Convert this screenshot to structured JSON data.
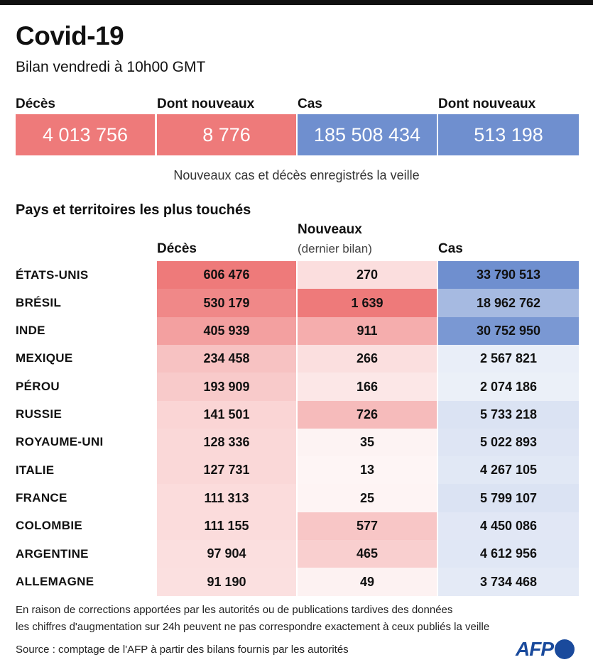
{
  "header": {
    "title": "Covid-19",
    "subtitle": "Bilan vendredi à 10h00 GMT"
  },
  "summary": [
    {
      "label": "Décès",
      "value": "4 013 756",
      "color": "#ee7a7a"
    },
    {
      "label": "Dont nouveaux",
      "value": "8 776",
      "color": "#ee7a7a"
    },
    {
      "label": "Cas",
      "value": "185 508 434",
      "color": "#6f8fcf"
    },
    {
      "label": "Dont nouveaux",
      "value": "513 198",
      "color": "#6f8fcf"
    }
  ],
  "note": "Nouveaux cas et décès enregistrés la veille",
  "section_title": "Pays et territoires les plus touchés",
  "columns": {
    "deaths": "Décès",
    "new": "Nouveaux",
    "new_sub": "(dernier bilan)",
    "cases": "Cas"
  },
  "chart_data": {
    "type": "table",
    "title": "Pays et territoires les plus touchés",
    "columns": [
      "Décès",
      "Nouveaux (dernier bilan)",
      "Cas"
    ],
    "rows": [
      {
        "country": "ÉTATS-UNIS",
        "deaths": 606476,
        "new": 270,
        "cases": 33790513,
        "deaths_label": "606 476",
        "new_label": "270",
        "cases_label": "33 790 513"
      },
      {
        "country": "BRÉSIL",
        "deaths": 530179,
        "new": 1639,
        "cases": 18962762,
        "deaths_label": "530 179",
        "new_label": "1 639",
        "cases_label": "18 962 762"
      },
      {
        "country": "INDE",
        "deaths": 405939,
        "new": 911,
        "cases": 30752950,
        "deaths_label": "405 939",
        "new_label": "911",
        "cases_label": "30 752 950"
      },
      {
        "country": "MEXIQUE",
        "deaths": 234458,
        "new": 266,
        "cases": 2567821,
        "deaths_label": "234 458",
        "new_label": "266",
        "cases_label": "2 567 821"
      },
      {
        "country": "PÉROU",
        "deaths": 193909,
        "new": 166,
        "cases": 2074186,
        "deaths_label": "193 909",
        "new_label": "166",
        "cases_label": "2 074 186"
      },
      {
        "country": "RUSSIE",
        "deaths": 141501,
        "new": 726,
        "cases": 5733218,
        "deaths_label": "141 501",
        "new_label": "726",
        "cases_label": "5 733 218"
      },
      {
        "country": "ROYAUME-UNI",
        "deaths": 128336,
        "new": 35,
        "cases": 5022893,
        "deaths_label": "128 336",
        "new_label": "35",
        "cases_label": "5 022 893"
      },
      {
        "country": "ITALIE",
        "deaths": 127731,
        "new": 13,
        "cases": 4267105,
        "deaths_label": "127 731",
        "new_label": "13",
        "cases_label": "4 267 105"
      },
      {
        "country": "FRANCE",
        "deaths": 111313,
        "new": 25,
        "cases": 5799107,
        "deaths_label": "111 313",
        "new_label": "25",
        "cases_label": "5 799 107"
      },
      {
        "country": "COLOMBIE",
        "deaths": 111155,
        "new": 577,
        "cases": 4450086,
        "deaths_label": "111 155",
        "new_label": "577",
        "cases_label": "4 450 086"
      },
      {
        "country": "ARGENTINE",
        "deaths": 97904,
        "new": 465,
        "cases": 4612956,
        "deaths_label": "97 904",
        "new_label": "465",
        "cases_label": "4 612 956"
      },
      {
        "country": "ALLEMAGNE",
        "deaths": 91190,
        "new": 49,
        "cases": 3734468,
        "deaths_label": "91 190",
        "new_label": "49",
        "cases_label": "3 734 468"
      }
    ],
    "colors": {
      "red": "#ee7a7a",
      "blue": "#6f8fcf"
    }
  },
  "footer": {
    "line1": "En raison de corrections apportées par les autorités ou de publications tardives des données",
    "line2": "les chiffres d'augmentation sur 24h peuvent ne pas correspondre exactement à ceux publiés la veille",
    "source": "Source : comptage de l'AFP à partir des bilans fournis par les autorités",
    "logo": "AFP"
  }
}
